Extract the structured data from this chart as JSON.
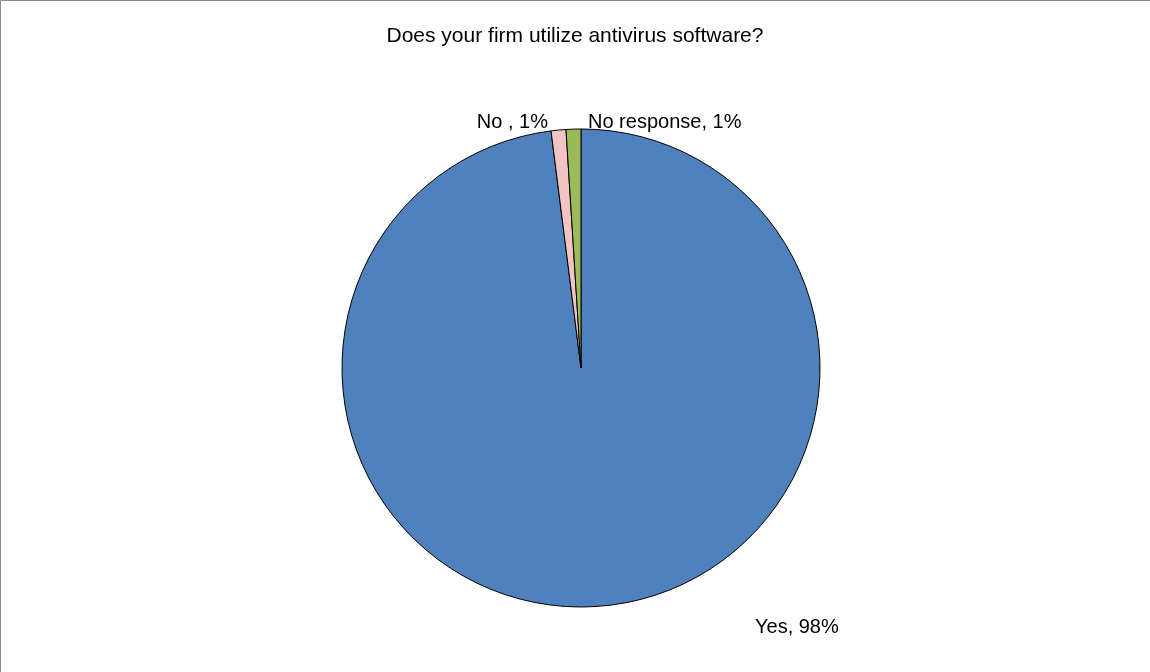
{
  "chart_data": {
    "type": "pie",
    "title": "Does your firm utilize antivirus software?",
    "categories": [
      "Yes",
      "No ",
      "No response"
    ],
    "values": [
      98,
      1,
      1
    ],
    "colors": [
      "#4f81bd",
      "#f2c4c4",
      "#9bbb59"
    ],
    "value_labels": [
      "98%",
      "1%",
      "1%"
    ],
    "legend": false
  }
}
